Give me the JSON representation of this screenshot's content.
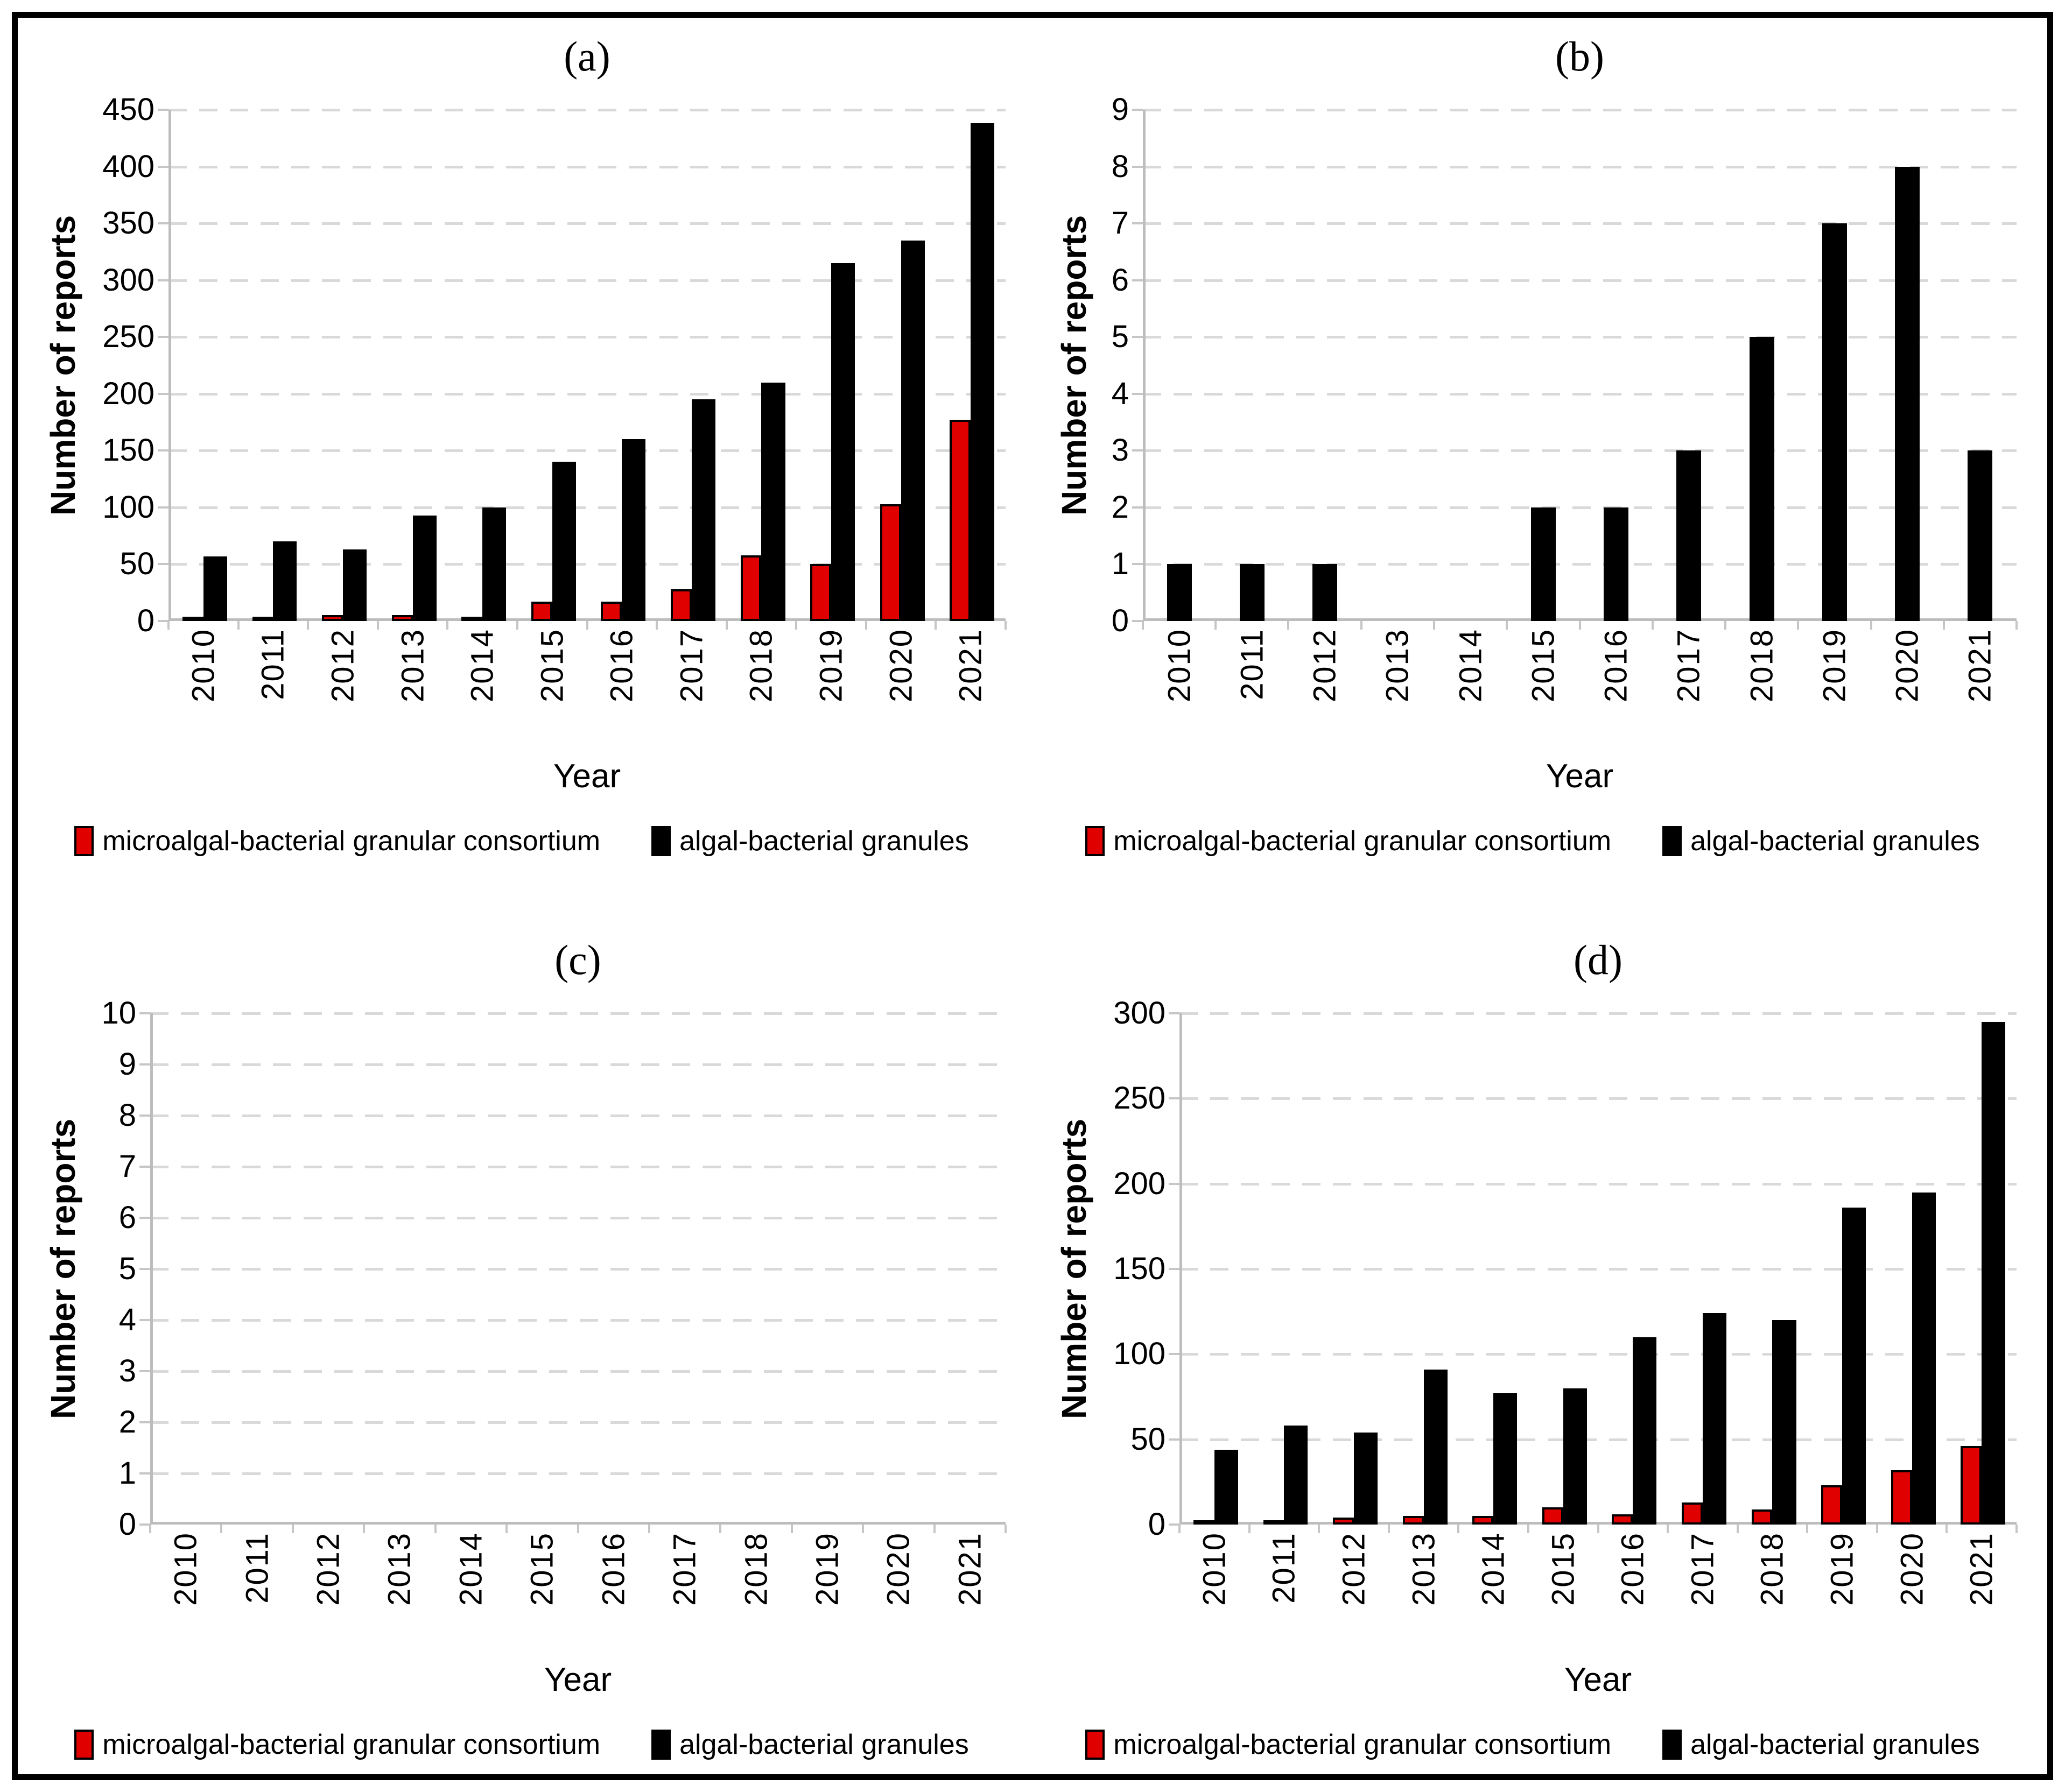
{
  "figure": {
    "background": "#ffffff",
    "border_color": "#000000",
    "series_colors": {
      "consortium": "#e10000",
      "granules": "#000000"
    },
    "gridline_color": "#d9d9d9",
    "axis_color": "#bdbdbd"
  },
  "chart_data": [
    {
      "type": "bar",
      "title": "(a)",
      "ylabel": "Number of reports",
      "xlabel": "Year",
      "ylim": [
        0,
        450
      ],
      "ytick_step": 50,
      "grid": "horizontal-dashed",
      "legend_position": "bottom",
      "categories": [
        "2010",
        "2011",
        "2012",
        "2013",
        "2014",
        "2015",
        "2016",
        "2017",
        "2018",
        "2019",
        "2020",
        "2021"
      ],
      "series": [
        {
          "name": "microalgal-bacterial granular consortium",
          "color": "#e10000",
          "values": [
            2,
            2,
            5,
            5,
            4,
            17,
            17,
            28,
            58,
            50,
            103,
            177
          ]
        },
        {
          "name": "algal-bacterial granules",
          "color": "#000000",
          "values": [
            57,
            70,
            63,
            93,
            100,
            140,
            160,
            195,
            210,
            315,
            335,
            438
          ]
        }
      ]
    },
    {
      "type": "bar",
      "title": "(b)",
      "ylabel": "Number of reports",
      "xlabel": "Year",
      "ylim": [
        0,
        9
      ],
      "ytick_step": 1,
      "grid": "horizontal-dashed",
      "legend_position": "bottom",
      "categories": [
        "2010",
        "2011",
        "2012",
        "2013",
        "2014",
        "2015",
        "2016",
        "2017",
        "2018",
        "2019",
        "2020",
        "2021"
      ],
      "series": [
        {
          "name": "microalgal-bacterial granular consortium",
          "color": "#e10000",
          "values": [
            0,
            0,
            0,
            0,
            0,
            0,
            0,
            0,
            0,
            0,
            0,
            0
          ]
        },
        {
          "name": "algal-bacterial granules",
          "color": "#000000",
          "values": [
            1,
            1,
            1,
            0,
            0,
            2,
            2,
            3,
            5,
            7,
            8,
            3
          ]
        }
      ]
    },
    {
      "type": "bar",
      "title": "(c)",
      "ylabel": "Number of reports",
      "xlabel": "Year",
      "ylim": [
        0,
        10
      ],
      "ytick_step": 1,
      "grid": "horizontal-dashed",
      "legend_position": "bottom",
      "categories": [
        "2010",
        "2011",
        "2012",
        "2013",
        "2014",
        "2015",
        "2016",
        "2017",
        "2018",
        "2019",
        "2020",
        "2021"
      ],
      "series": [
        {
          "name": "microalgal-bacterial granular consortium",
          "color": "#e10000",
          "values": [
            0,
            0,
            0,
            0,
            0,
            0,
            0,
            0,
            0,
            0,
            0,
            0
          ]
        },
        {
          "name": "algal-bacterial granules",
          "color": "#000000",
          "values": [
            0,
            0,
            0,
            0,
            0,
            0,
            0,
            0,
            0,
            0,
            0,
            0
          ]
        }
      ]
    },
    {
      "type": "bar",
      "title": "(d)",
      "ylabel": "Number of reports",
      "xlabel": "Year",
      "ylim": [
        0,
        300
      ],
      "ytick_step": 50,
      "grid": "horizontal-dashed",
      "legend_position": "bottom",
      "categories": [
        "2010",
        "2011",
        "2012",
        "2013",
        "2014",
        "2015",
        "2016",
        "2017",
        "2018",
        "2019",
        "2020",
        "2021"
      ],
      "series": [
        {
          "name": "microalgal-bacterial granular consortium",
          "color": "#e10000",
          "values": [
            1,
            1,
            4,
            5,
            5,
            10,
            6,
            13,
            9,
            23,
            32,
            46
          ]
        },
        {
          "name": "algal-bacterial granules",
          "color": "#000000",
          "values": [
            44,
            58,
            54,
            91,
            77,
            80,
            110,
            124,
            120,
            186,
            195,
            295
          ]
        }
      ]
    }
  ]
}
